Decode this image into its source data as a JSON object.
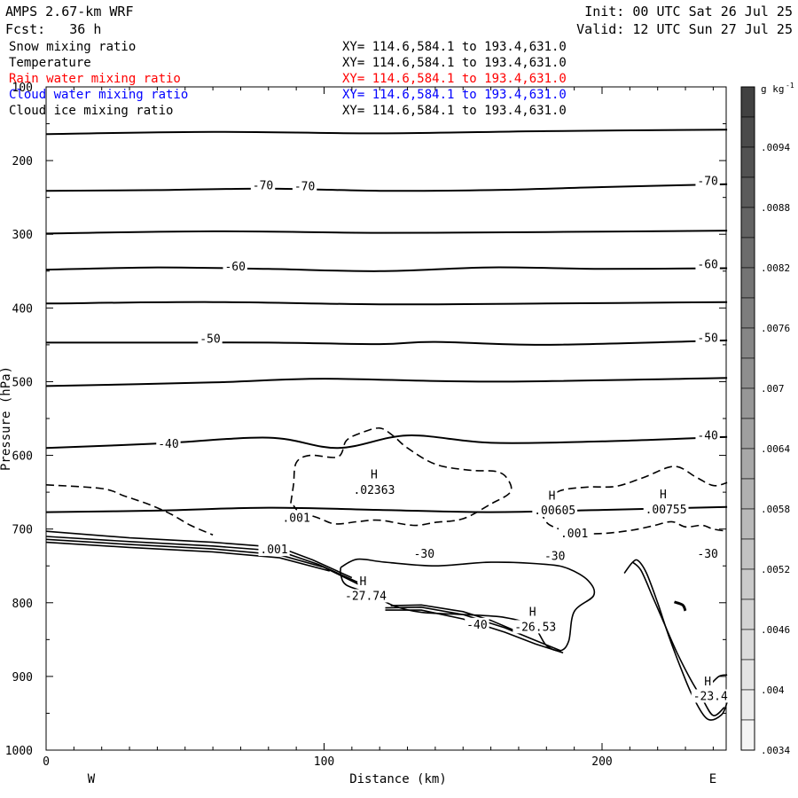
{
  "header": {
    "model": "AMPS 2.67-km WRF",
    "forecast": "Fcst:   36 h",
    "init": "Init: 00 UTC Sat 26 Jul 25",
    "valid": "Valid: 12 UTC Sun 27 Jul 25"
  },
  "fields": [
    {
      "name": "Snow mixing ratio",
      "xy": "XY= 114.6,584.1 to 193.4,631.0",
      "color": "#000000"
    },
    {
      "name": "Temperature",
      "xy": "XY= 114.6,584.1 to 193.4,631.0",
      "color": "#000000"
    },
    {
      "name": "Rain water mixing ratio",
      "xy": "XY= 114.6,584.1 to 193.4,631.0",
      "color": "#ff0000"
    },
    {
      "name": "Cloud water mixing ratio",
      "xy": "XY= 114.6,584.1 to 193.4,631.0",
      "color": "#0000ff"
    },
    {
      "name": "Cloud ice mixing ratio",
      "xy": "XY= 114.6,584.1 to 193.4,631.0",
      "color": "#000000"
    }
  ],
  "chart_data": {
    "type": "contour cross-section",
    "xlabel": "Distance (km)",
    "ylabel": "Pressure (hPa)",
    "xlim": [
      0,
      245
    ],
    "ylim": [
      1000,
      100
    ],
    "xticks": [
      "0",
      "100",
      "200"
    ],
    "xtick_values": [
      0,
      100,
      200
    ],
    "yticks": [
      "100",
      "200",
      "300",
      "400",
      "500",
      "600",
      "700",
      "800",
      "900",
      "1000"
    ],
    "ytick_values": [
      100,
      200,
      300,
      400,
      500,
      600,
      700,
      800,
      900,
      1000
    ],
    "direction_left": "W",
    "direction_right": "E",
    "colorbar": {
      "units_label": "g kg",
      "units_exponent": "-1",
      "labels": [
        ".0094",
        ".0088",
        ".0082",
        ".0076",
        ".007",
        ".0064",
        ".0058",
        ".0052",
        ".0046",
        ".004",
        ".0034"
      ]
    },
    "temperature_contours": [
      {
        "level": -70,
        "points": [
          [
            0,
            241
          ],
          [
            40,
            240
          ],
          [
            80,
            238
          ],
          [
            120,
            241
          ],
          [
            160,
            240
          ],
          [
            200,
            236
          ],
          [
            245,
            232
          ]
        ]
      },
      {
        "level": -60,
        "points": [
          [
            0,
            348
          ],
          [
            40,
            345
          ],
          [
            80,
            347
          ],
          [
            120,
            350
          ],
          [
            160,
            345
          ],
          [
            200,
            347
          ],
          [
            245,
            346
          ]
        ]
      },
      {
        "level": -50,
        "points": [
          [
            0,
            447
          ],
          [
            40,
            447
          ],
          [
            80,
            447
          ],
          [
            120,
            449
          ],
          [
            140,
            446
          ],
          [
            180,
            450
          ],
          [
            245,
            444
          ]
        ]
      },
      {
        "level": -40,
        "points": [
          [
            0,
            590
          ],
          [
            40,
            584
          ],
          [
            80,
            576
          ],
          [
            105,
            590
          ],
          [
            130,
            573
          ],
          [
            160,
            583
          ],
          [
            200,
            581
          ],
          [
            245,
            575
          ]
        ]
      },
      {
        "level": -30,
        "points": [
          [
            0,
            677
          ],
          [
            40,
            675
          ],
          [
            80,
            671
          ],
          [
            120,
            674
          ],
          [
            160,
            677
          ],
          [
            200,
            674
          ],
          [
            245,
            670
          ]
        ]
      },
      {
        "level": null,
        "points": [
          [
            0,
            164
          ],
          [
            60,
            161
          ],
          [
            120,
            163
          ],
          [
            180,
            160
          ],
          [
            245,
            158
          ]
        ]
      },
      {
        "level": null,
        "points": [
          [
            0,
            299
          ],
          [
            60,
            296
          ],
          [
            120,
            298
          ],
          [
            180,
            297
          ],
          [
            245,
            295
          ]
        ]
      },
      {
        "level": null,
        "points": [
          [
            0,
            394
          ],
          [
            60,
            392
          ],
          [
            120,
            395
          ],
          [
            180,
            394
          ],
          [
            245,
            392
          ]
        ]
      },
      {
        "level": null,
        "points": [
          [
            0,
            506
          ],
          [
            60,
            501
          ],
          [
            100,
            496
          ],
          [
            160,
            500
          ],
          [
            245,
            495
          ]
        ]
      }
    ],
    "cloud_ice_contours": [
      {
        "level": 0.001,
        "region": "west"
      },
      {
        "level": 0.001,
        "region": "central"
      },
      {
        "level": 0.001,
        "region": "east"
      }
    ],
    "annotations": [
      {
        "text": "-70",
        "x": 78,
        "p": 239
      },
      {
        "text": "-70",
        "x": 93,
        "p": 240
      },
      {
        "text": "-70",
        "x": 238,
        "p": 233
      },
      {
        "text": "-60",
        "x": 68,
        "p": 349
      },
      {
        "text": "-60",
        "x": 238,
        "p": 346
      },
      {
        "text": "-50",
        "x": 59,
        "p": 447
      },
      {
        "text": "-50",
        "x": 238,
        "p": 446
      },
      {
        "text": "-40",
        "x": 44,
        "p": 590
      },
      {
        "text": "-40",
        "x": 238,
        "p": 578
      },
      {
        "text": "-40",
        "x": 155,
        "p": 835
      },
      {
        "text": "-30",
        "x": 136,
        "p": 739
      },
      {
        "text": "-30",
        "x": 183,
        "p": 742
      },
      {
        "text": "-30",
        "x": 238,
        "p": 739
      },
      {
        "text": ".001",
        "x": 90,
        "p": 690
      },
      {
        "text": ".001",
        "x": 190,
        "p": 711
      },
      {
        "text": ".001",
        "x": 82,
        "p": 733
      },
      {
        "text": "H",
        "x": 118,
        "p": 631
      },
      {
        "text": ".02363",
        "x": 118,
        "p": 652
      },
      {
        "text": "H",
        "x": 182,
        "p": 660
      },
      {
        "text": ".00605",
        "x": 183,
        "p": 680
      },
      {
        "text": "H",
        "x": 222,
        "p": 658
      },
      {
        "text": ".00755",
        "x": 223,
        "p": 679
      },
      {
        "text": "H",
        "x": 114,
        "p": 776
      },
      {
        "text": "-27.74",
        "x": 115,
        "p": 796
      },
      {
        "text": "H",
        "x": 175,
        "p": 818
      },
      {
        "text": "-26.53",
        "x": 176,
        "p": 838
      },
      {
        "text": "H",
        "x": 238,
        "p": 912
      },
      {
        "text": "-23.4",
        "x": 239,
        "p": 932
      }
    ]
  }
}
